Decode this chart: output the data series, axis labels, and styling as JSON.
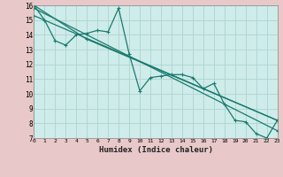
{
  "xlabel": "Humidex (Indice chaleur)",
  "bg_color": "#ceecea",
  "plot_bg": "#ceecea",
  "below_bg": "#e8c8c8",
  "grid_color": "#aed4d0",
  "line_color": "#1a7a6e",
  "xlim": [
    0,
    23
  ],
  "ylim": [
    7,
    16
  ],
  "xticks": [
    0,
    1,
    2,
    3,
    4,
    5,
    6,
    7,
    8,
    9,
    10,
    11,
    12,
    13,
    14,
    15,
    16,
    17,
    18,
    19,
    20,
    21,
    22,
    23
  ],
  "yticks": [
    7,
    8,
    9,
    10,
    11,
    12,
    13,
    14,
    15,
    16
  ],
  "series_main": {
    "x": [
      0,
      1,
      2,
      3,
      4,
      5,
      6,
      7,
      8,
      9,
      10,
      11,
      12,
      13,
      14,
      15,
      16,
      17,
      18,
      19,
      20,
      21,
      22,
      23
    ],
    "y": [
      16,
      15,
      13.6,
      13.3,
      14.0,
      14.1,
      14.3,
      14.2,
      15.8,
      12.7,
      10.2,
      11.1,
      11.2,
      11.3,
      11.3,
      11.1,
      10.35,
      10.7,
      9.3,
      8.2,
      8.1,
      7.3,
      7.0,
      8.2
    ]
  },
  "series_line1": {
    "x": [
      0,
      23
    ],
    "y": [
      15.8,
      7.5
    ]
  },
  "series_line2": {
    "x": [
      0,
      23
    ],
    "y": [
      15.3,
      8.2
    ]
  },
  "series_line3": {
    "x": [
      0,
      5,
      23
    ],
    "y": [
      16,
      13.7,
      8.2
    ]
  }
}
